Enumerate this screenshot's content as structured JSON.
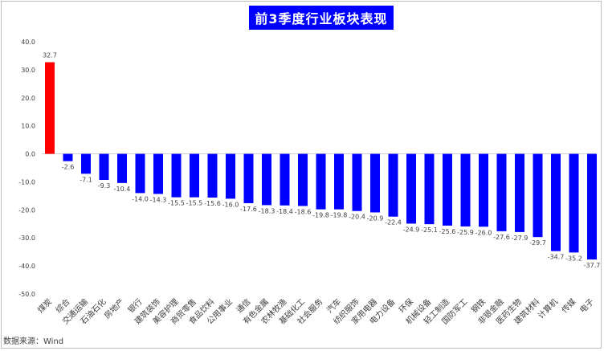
{
  "chart_data": {
    "type": "bar",
    "title": "前3季度行业板块表现",
    "source": "数据来源：Wind",
    "xlabel": "",
    "ylabel": "",
    "ylim": [
      -50,
      40
    ],
    "yticks": [
      "40.0",
      "30.0",
      "20.0",
      "10.0",
      "0.0",
      "-10.0",
      "-20.0",
      "-30.0",
      "-40.0",
      "-50.0"
    ],
    "grid": false,
    "colors": {
      "positive": "#ff0000",
      "negative": "#0000ff"
    },
    "categories": [
      "煤炭",
      "综合",
      "交通运输",
      "石油石化",
      "房地产",
      "银行",
      "建筑装饰",
      "美容护理",
      "商贸零售",
      "食品饮料",
      "公用事业",
      "通信",
      "有色金属",
      "农林牧渔",
      "基础化工",
      "社会服务",
      "汽车",
      "纺织服饰",
      "家用电器",
      "电力设备",
      "环保",
      "机械设备",
      "轻工制造",
      "国防军工",
      "钢铁",
      "非银金融",
      "医药生物",
      "建筑材料",
      "计算机",
      "传媒",
      "电子"
    ],
    "values": [
      32.7,
      -2.6,
      -7.1,
      -9.3,
      -10.4,
      -14.0,
      -14.3,
      -15.5,
      -15.5,
      -15.6,
      -16.0,
      -17.6,
      -18.3,
      -18.4,
      -18.6,
      -19.8,
      -19.8,
      -20.4,
      -20.9,
      -22.4,
      -24.9,
      -25.1,
      -25.6,
      -25.9,
      -26.0,
      -27.6,
      -27.9,
      -29.7,
      -34.7,
      -35.2,
      -37.7
    ],
    "value_labels": [
      "32.7",
      "-2.6",
      "-7.1",
      "-9.3",
      "-10.4",
      "-14.0",
      "-14.3",
      "-15.5",
      "-15.5",
      "-15.6",
      "-16.0",
      "-17.6",
      "-18.3",
      "-18.4",
      "-18.6",
      "-19.8",
      "-19.8",
      "-20.4",
      "-20.9",
      "-22.4",
      "-24.9",
      "-25.1",
      "-25.6",
      "-25.9",
      "-26.0",
      "-27.6",
      "-27.9",
      "-29.7",
      "-34.7",
      "-35.2",
      "-37.7"
    ]
  }
}
